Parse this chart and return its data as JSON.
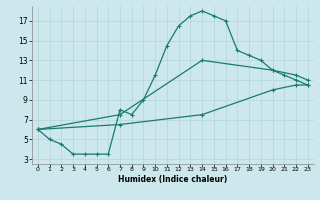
{
  "xlabel": "Humidex (Indice chaleur)",
  "bg_color": "#cce8ec",
  "grid_color": "#b8d8dc",
  "line_color": "#1a7a6e",
  "xlim": [
    -0.5,
    23.5
  ],
  "ylim": [
    2.5,
    18.5
  ],
  "xticks": [
    0,
    1,
    2,
    3,
    4,
    5,
    6,
    7,
    8,
    9,
    10,
    11,
    12,
    13,
    14,
    15,
    16,
    17,
    18,
    19,
    20,
    21,
    22,
    23
  ],
  "yticks": [
    3,
    5,
    7,
    9,
    11,
    13,
    15,
    17
  ],
  "line1_x": [
    0,
    1,
    2,
    3,
    4,
    5,
    6,
    7,
    8,
    9,
    10,
    11,
    12,
    13,
    14,
    15,
    16,
    17,
    18,
    19,
    20,
    21,
    22,
    23
  ],
  "line1_y": [
    6,
    5,
    4.5,
    3.5,
    3.5,
    3.5,
    3.5,
    8,
    7.5,
    9,
    11.5,
    14.5,
    16.5,
    17.5,
    18,
    17.5,
    17,
    14,
    13.5,
    13,
    12,
    11.5,
    11,
    10.5
  ],
  "line2_x": [
    0,
    7,
    14,
    20,
    22,
    23
  ],
  "line2_y": [
    6,
    7.5,
    13,
    12,
    11.5,
    11
  ],
  "line3_x": [
    0,
    7,
    14,
    20,
    22,
    23
  ],
  "line3_y": [
    6,
    6.5,
    7.5,
    10,
    10.5,
    10.5
  ]
}
